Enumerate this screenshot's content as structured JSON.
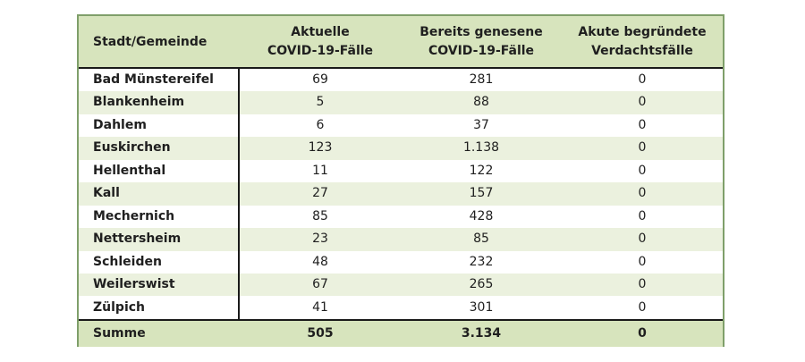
{
  "table": {
    "headers": {
      "col0": "Stadt/Gemeinde",
      "col1_line1": "Aktuelle",
      "col1_line2": "COVID-19-Fälle",
      "col2_line1": "Bereits genesene",
      "col2_line2": "COVID-19-Fälle",
      "col3_line1": "Akute begründete",
      "col3_line2": "Verdachtsfälle"
    },
    "rows": [
      {
        "name": "Bad Münstereifel",
        "aktuell": "69",
        "genesen": "281",
        "verdacht": "0"
      },
      {
        "name": "Blankenheim",
        "aktuell": "5",
        "genesen": "88",
        "verdacht": "0"
      },
      {
        "name": "Dahlem",
        "aktuell": "6",
        "genesen": "37",
        "verdacht": "0"
      },
      {
        "name": "Euskirchen",
        "aktuell": "123",
        "genesen": "1.138",
        "verdacht": "0"
      },
      {
        "name": "Hellenthal",
        "aktuell": "11",
        "genesen": "122",
        "verdacht": "0"
      },
      {
        "name": "Kall",
        "aktuell": "27",
        "genesen": "157",
        "verdacht": "0"
      },
      {
        "name": "Mechernich",
        "aktuell": "85",
        "genesen": "428",
        "verdacht": "0"
      },
      {
        "name": "Nettersheim",
        "aktuell": "23",
        "genesen": "85",
        "verdacht": "0"
      },
      {
        "name": "Schleiden",
        "aktuell": "48",
        "genesen": "232",
        "verdacht": "0"
      },
      {
        "name": "Weilerswist",
        "aktuell": "67",
        "genesen": "265",
        "verdacht": "0"
      },
      {
        "name": "Zülpich",
        "aktuell": "41",
        "genesen": "301",
        "verdacht": "0"
      }
    ],
    "total": {
      "name": "Summe",
      "aktuell": "505",
      "genesen": "3.134",
      "verdacht": "0"
    }
  },
  "colors": {
    "header_bg": "#d7e4bd",
    "alt_row_bg": "#ebf1de",
    "border": "#7f9f6a"
  }
}
